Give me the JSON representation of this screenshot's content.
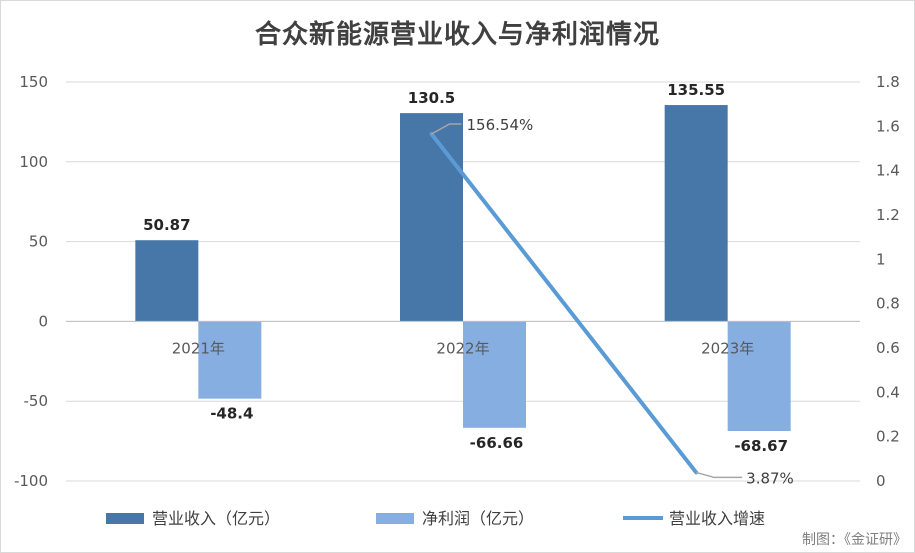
{
  "title": "合众新能源营业收入与净利润情况",
  "source": "制图：《金证研》",
  "chart_data": {
    "type": "bar",
    "title": "合众新能源营业收入与净利润情况",
    "categories": [
      "2021年",
      "2022年",
      "2023年"
    ],
    "series": [
      {
        "name": "营业收入（亿元）",
        "kind": "bar",
        "axis": "left",
        "color": "#4677a8",
        "values": [
          50.87,
          130.5,
          135.55
        ],
        "labels": [
          "50.87",
          "130.5",
          "135.55"
        ]
      },
      {
        "name": "净利润（亿元）",
        "kind": "bar",
        "axis": "left",
        "color": "#86aee0",
        "values": [
          -48.4,
          -66.66,
          -68.67
        ],
        "labels": [
          "-48.4",
          "-66.66",
          "-68.67"
        ]
      },
      {
        "name": "营业收入增速",
        "kind": "line",
        "axis": "right",
        "color": "#5b9bd5",
        "points": [
          {
            "category": "2022年",
            "value": 1.5654,
            "label": "156.54%"
          },
          {
            "category": "2023年",
            "value": 0.0387,
            "label": "3.87%"
          }
        ]
      }
    ],
    "y_left": {
      "min": -100,
      "max": 150,
      "ticks": [
        "150",
        "100",
        "50",
        "0",
        "-50",
        "-100"
      ],
      "tick_values": [
        150,
        100,
        50,
        0,
        -50,
        -100
      ]
    },
    "y_right": {
      "min": 0,
      "max": 1.8,
      "ticks": [
        "1.8",
        "1.6",
        "1.4",
        "1.2",
        "1",
        "0.8",
        "0.6",
        "0.4",
        "0.2",
        "0"
      ],
      "tick_values": [
        1.8,
        1.6,
        1.4,
        1.2,
        1,
        0.8,
        0.6,
        0.4,
        0.2,
        0
      ]
    },
    "grid": true,
    "legend_position": "bottom"
  }
}
